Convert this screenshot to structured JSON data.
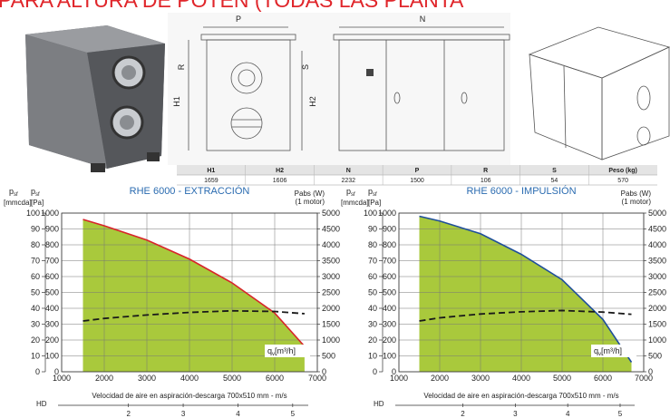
{
  "header": {
    "title": "PARA ALTURA DE POTEN (TODAS LAS PLANTA"
  },
  "drawing": {
    "labels": [
      "P",
      "N",
      "R",
      "S",
      "H1",
      "H2"
    ]
  },
  "table": {
    "header": [
      "H1",
      "H2",
      "N",
      "P",
      "R",
      "S",
      "Peso (kg)"
    ],
    "rows": [
      [
        1659,
        1606,
        2232,
        1500,
        106,
        54,
        570
      ]
    ]
  },
  "chart_data": [
    {
      "type": "line",
      "title": "RHE 6000 - EXTRACCIÓN",
      "x": [
        1500,
        2000,
        3000,
        4000,
        5000,
        6000,
        6700
      ],
      "series": [
        {
          "color": "#d8242a",
          "fill": "#a9c93c",
          "values": [
            960,
            920,
            830,
            710,
            560,
            370,
            160
          ]
        },
        {
          "color": "#1a1a1a",
          "dashed": true,
          "axis": "y2",
          "values": [
            1600,
            1680,
            1790,
            1870,
            1920,
            1900,
            1830
          ]
        }
      ],
      "xlim": [
        1000,
        7000
      ],
      "xticks": [
        1000,
        2000,
        3000,
        4000,
        5000,
        6000,
        7000
      ],
      "ylim": [
        0,
        1000
      ],
      "yticks": [
        0,
        100,
        200,
        300,
        400,
        500,
        600,
        700,
        800,
        900,
        1000
      ],
      "y_mmcda_lim": [
        0,
        100
      ],
      "y_mmcda_ticks": [
        0,
        10,
        20,
        30,
        40,
        50,
        60,
        70,
        80,
        90,
        100
      ],
      "y2lim": [
        0,
        5000
      ],
      "y2ticks": [
        0,
        500,
        1000,
        1500,
        2000,
        2500,
        3000,
        3500,
        4000,
        4500,
        5000
      ],
      "ylabel_symbol": "p",
      "ylabel_subscript": "sf",
      "ylabel_mmcda": "[mmcda]",
      "ylabel": "[Pa]",
      "y2label": "Pabs (W)",
      "y2label_note": "(1 motor)",
      "annotation_symbol": "q",
      "annotation_subscript": "v",
      "annotation": "[m³/h]",
      "x2label": "Velocidad de aire en aspiración-descarga 700x510 mm - m/s",
      "x2name": "HD",
      "x2lim": [
        0.78,
        5.45
      ],
      "x2ticks": [
        2,
        3,
        4,
        5
      ],
      "grid": true
    },
    {
      "type": "line",
      "title": "RHE 6000 - IMPULSIÓN",
      "x": [
        1500,
        2000,
        3000,
        4000,
        5000,
        6000,
        6700
      ],
      "series": [
        {
          "color": "#1f4f9a",
          "fill": "#a9c93c",
          "values": [
            980,
            950,
            870,
            740,
            580,
            330,
            60
          ]
        },
        {
          "color": "#1a1a1a",
          "dashed": true,
          "axis": "y2",
          "values": [
            1600,
            1700,
            1820,
            1890,
            1930,
            1880,
            1810
          ]
        }
      ],
      "xlim": [
        1000,
        7000
      ],
      "xticks": [
        1000,
        2000,
        3000,
        4000,
        5000,
        6000,
        7000
      ],
      "ylim": [
        0,
        1000
      ],
      "yticks": [
        0,
        100,
        200,
        300,
        400,
        500,
        600,
        700,
        800,
        900,
        1000
      ],
      "y_mmcda_lim": [
        0,
        100
      ],
      "y_mmcda_ticks": [
        0,
        10,
        20,
        30,
        40,
        50,
        60,
        70,
        80,
        90,
        100
      ],
      "y2lim": [
        0,
        5000
      ],
      "y2ticks": [
        0,
        500,
        1000,
        1500,
        2000,
        2500,
        3000,
        3500,
        4000,
        4500,
        5000
      ],
      "ylabel_symbol": "p",
      "ylabel_subscript": "sf",
      "ylabel_mmcda": "[mmcda]",
      "ylabel": "[Pa]",
      "y2label": "Pabs (W)",
      "y2label_note": "(1 motor)",
      "annotation_symbol": "q",
      "annotation_subscript": "v",
      "annotation": "[m³/h]",
      "x2label": "Velocidad de aire en aspiración-descarga 700x510 mm - m/s",
      "x2name": "HD",
      "x2lim": [
        0.78,
        5.45
      ],
      "x2ticks": [
        2,
        3,
        4,
        5
      ],
      "grid": true
    }
  ]
}
